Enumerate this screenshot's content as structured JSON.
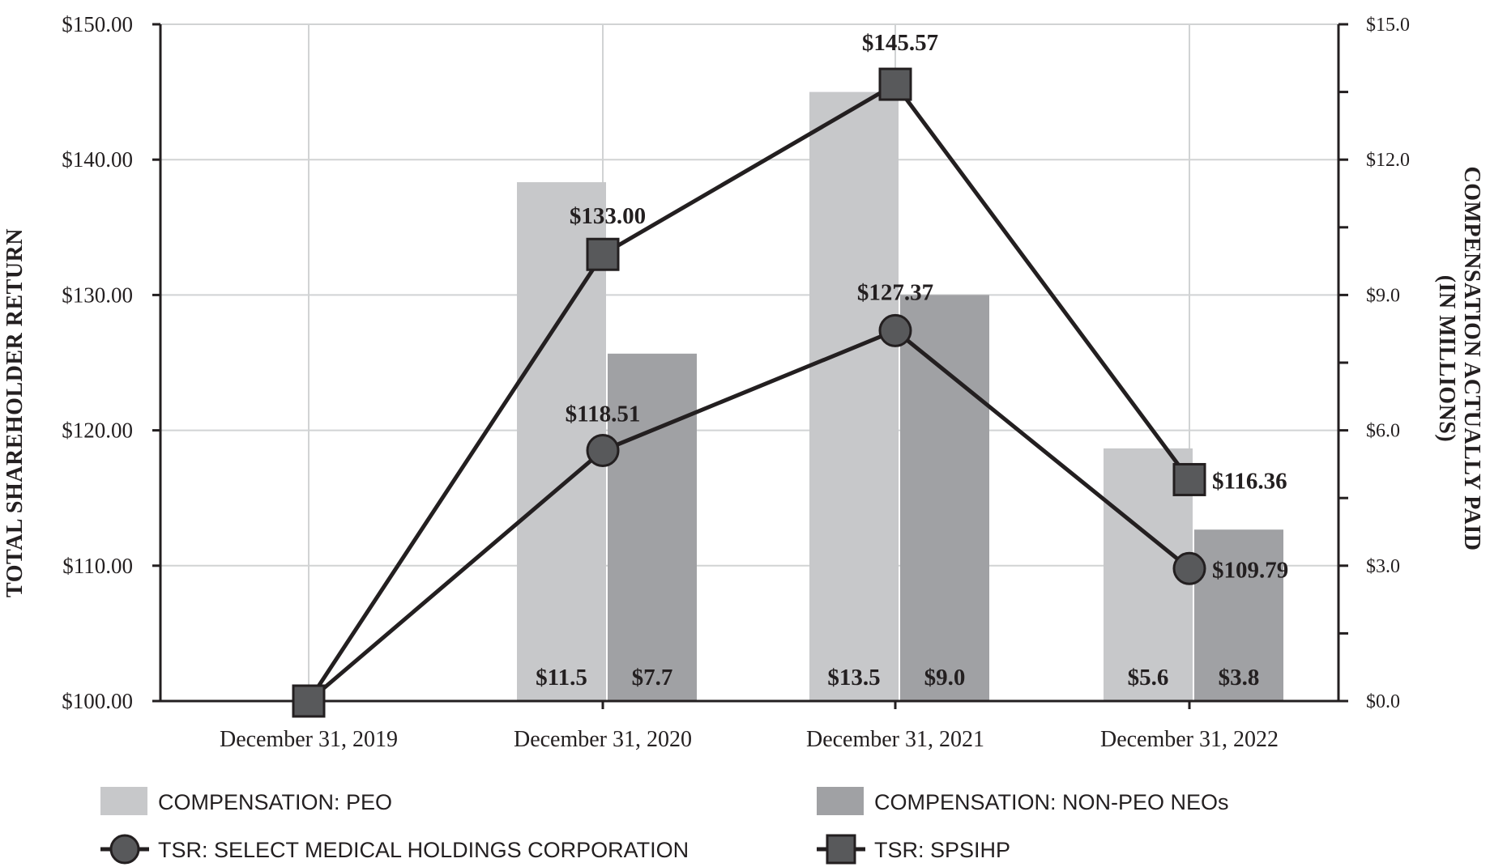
{
  "chart_data": {
    "type": "bar",
    "categories": [
      "December 31, 2019",
      "December 31, 2020",
      "December 31, 2021",
      "December 31, 2022"
    ],
    "left_axis": {
      "label": "TOTAL SHAREHOLDER RETURN",
      "ylim": [
        100,
        150
      ],
      "ticks": [
        100,
        110,
        120,
        130,
        140,
        150
      ],
      "tick_labels": [
        "$100.00",
        "$110.00",
        "$120.00",
        "$130.00",
        "$140.00",
        "$150.00"
      ]
    },
    "right_axis": {
      "label_line1": "COMPENSATION ACTUALLY PAID",
      "label_line2": "(IN MILLIONS)",
      "ylim": [
        0,
        15
      ],
      "ticks": [
        0,
        3,
        6,
        9,
        12,
        15
      ],
      "tick_labels": [
        "$0.0",
        "$3.0",
        "$6.0",
        "$9.0",
        "$12.0",
        "$15.0"
      ]
    },
    "bar_series": [
      {
        "name": "COMPENSATION: PEO",
        "color": "#c7c8ca",
        "values": [
          null,
          11.5,
          13.5,
          5.6
        ],
        "labels": [
          "",
          "$11.5",
          "$13.5",
          "$5.6"
        ]
      },
      {
        "name": "COMPENSATION: NON-PEO NEOs",
        "color": "#a0a1a4",
        "values": [
          null,
          7.7,
          9.0,
          3.8
        ],
        "labels": [
          "",
          "$7.7",
          "$9.0",
          "$3.8"
        ]
      }
    ],
    "line_series": [
      {
        "name": "TSR: SELECT MEDICAL HOLDINGS CORPORATION",
        "marker": "circle",
        "values": [
          100,
          118.51,
          127.37,
          109.79
        ],
        "labels": [
          "",
          "$118.51",
          "$127.37",
          "$109.79"
        ]
      },
      {
        "name": "TSR: SPSIHP",
        "marker": "square",
        "values": [
          100,
          133.0,
          145.57,
          116.36
        ],
        "labels": [
          "",
          "$133.00",
          "$145.57",
          "$116.36"
        ]
      }
    ],
    "colors": {
      "line": "#231f20",
      "marker_fill": "#58595b",
      "grid": "#d1d3d4",
      "axis": "#231f20"
    },
    "grid": true,
    "legend_position": "bottom"
  }
}
